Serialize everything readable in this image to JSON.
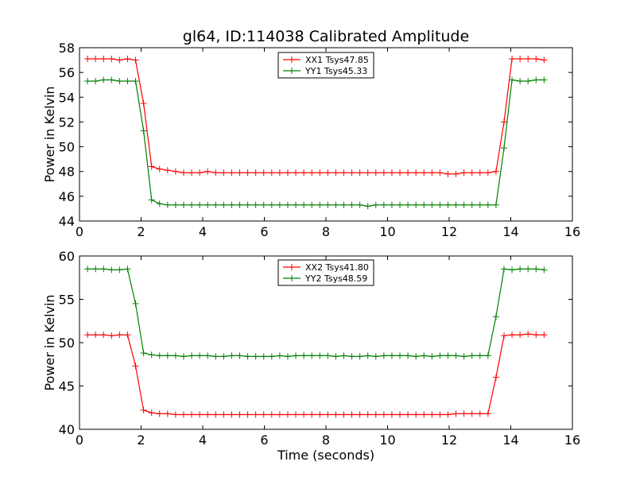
{
  "figure_title": "gl64, ID:114038 Calibrated Amplitude",
  "chart_data": [
    {
      "type": "line",
      "title": "gl64, ID:114038 Calibrated Amplitude",
      "xlabel": "",
      "ylabel": "Power in Kelvin",
      "xlim": [
        0,
        16
      ],
      "ylim": [
        44,
        58
      ],
      "xticks": [
        "0",
        "2",
        "4",
        "6",
        "8",
        "10",
        "12",
        "14",
        "16"
      ],
      "yticks": [
        "44",
        "46",
        "48",
        "50",
        "52",
        "54",
        "56",
        "58"
      ],
      "grid": false,
      "legend_position": "top-center",
      "x": [
        0.26,
        0.52,
        0.78,
        1.04,
        1.3,
        1.56,
        1.82,
        2.08,
        2.34,
        2.6,
        2.86,
        3.12,
        3.38,
        3.64,
        3.9,
        4.16,
        4.42,
        4.68,
        4.94,
        5.2,
        5.46,
        5.72,
        5.98,
        6.24,
        6.5,
        6.76,
        7.02,
        7.28,
        7.54,
        7.8,
        8.06,
        8.32,
        8.58,
        8.84,
        9.1,
        9.36,
        9.62,
        9.88,
        10.14,
        10.4,
        10.66,
        10.92,
        11.18,
        11.44,
        11.7,
        11.96,
        12.22,
        12.48,
        12.74,
        13.0,
        13.26,
        13.52,
        13.78,
        14.04,
        14.3,
        14.56,
        14.82,
        15.08
      ],
      "series": [
        {
          "name": "XX1 Tsys47.85",
          "color": "#ff0000",
          "values": [
            57.1,
            57.1,
            57.1,
            57.1,
            57.0,
            57.1,
            57.0,
            53.5,
            48.4,
            48.2,
            48.1,
            48.0,
            47.9,
            47.9,
            47.9,
            48.0,
            47.9,
            47.9,
            47.9,
            47.9,
            47.9,
            47.9,
            47.9,
            47.9,
            47.9,
            47.9,
            47.9,
            47.9,
            47.9,
            47.9,
            47.9,
            47.9,
            47.9,
            47.9,
            47.9,
            47.9,
            47.9,
            47.9,
            47.9,
            47.9,
            47.9,
            47.9,
            47.9,
            47.9,
            47.9,
            47.8,
            47.8,
            47.9,
            47.9,
            47.9,
            47.9,
            48.0,
            52.0,
            57.1,
            57.1,
            57.1,
            57.1,
            57.0
          ]
        },
        {
          "name": "YY1 Tsys45.33",
          "color": "#008000",
          "values": [
            55.3,
            55.3,
            55.4,
            55.4,
            55.3,
            55.3,
            55.3,
            51.3,
            45.7,
            45.4,
            45.3,
            45.3,
            45.3,
            45.3,
            45.3,
            45.3,
            45.3,
            45.3,
            45.3,
            45.3,
            45.3,
            45.3,
            45.3,
            45.3,
            45.3,
            45.3,
            45.3,
            45.3,
            45.3,
            45.3,
            45.3,
            45.3,
            45.3,
            45.3,
            45.3,
            45.2,
            45.3,
            45.3,
            45.3,
            45.3,
            45.3,
            45.3,
            45.3,
            45.3,
            45.3,
            45.3,
            45.3,
            45.3,
            45.3,
            45.3,
            45.3,
            45.3,
            49.9,
            55.4,
            55.3,
            55.3,
            55.4,
            55.4
          ]
        }
      ]
    },
    {
      "type": "line",
      "title": "",
      "xlabel": "Time (seconds)",
      "ylabel": "Power in Kelvin",
      "xlim": [
        0,
        16
      ],
      "ylim": [
        40,
        60
      ],
      "xticks": [
        "0",
        "2",
        "4",
        "6",
        "8",
        "10",
        "12",
        "14",
        "16"
      ],
      "yticks": [
        "40",
        "45",
        "50",
        "55",
        "60"
      ],
      "grid": false,
      "legend_position": "top-center",
      "x": [
        0.26,
        0.52,
        0.78,
        1.04,
        1.3,
        1.56,
        1.82,
        2.08,
        2.34,
        2.6,
        2.86,
        3.12,
        3.38,
        3.64,
        3.9,
        4.16,
        4.42,
        4.68,
        4.94,
        5.2,
        5.46,
        5.72,
        5.98,
        6.24,
        6.5,
        6.76,
        7.02,
        7.28,
        7.54,
        7.8,
        8.06,
        8.32,
        8.58,
        8.84,
        9.1,
        9.36,
        9.62,
        9.88,
        10.14,
        10.4,
        10.66,
        10.92,
        11.18,
        11.44,
        11.7,
        11.96,
        12.22,
        12.48,
        12.74,
        13.0,
        13.26,
        13.52,
        13.78,
        14.04,
        14.3,
        14.56,
        14.82,
        15.08
      ],
      "series": [
        {
          "name": "XX2 Tsys41.80",
          "color": "#ff0000",
          "values": [
            50.9,
            50.9,
            50.9,
            50.8,
            50.9,
            50.9,
            47.3,
            42.2,
            41.9,
            41.8,
            41.8,
            41.7,
            41.7,
            41.7,
            41.7,
            41.7,
            41.7,
            41.7,
            41.7,
            41.7,
            41.7,
            41.7,
            41.7,
            41.7,
            41.7,
            41.7,
            41.7,
            41.7,
            41.7,
            41.7,
            41.7,
            41.7,
            41.7,
            41.7,
            41.7,
            41.7,
            41.7,
            41.7,
            41.7,
            41.7,
            41.7,
            41.7,
            41.7,
            41.7,
            41.7,
            41.7,
            41.8,
            41.8,
            41.8,
            41.8,
            41.8,
            46.0,
            50.8,
            50.9,
            50.9,
            51.0,
            50.9,
            50.9
          ]
        },
        {
          "name": "YY2 Tsys48.59",
          "color": "#008000",
          "values": [
            58.5,
            58.5,
            58.5,
            58.4,
            58.4,
            58.5,
            54.5,
            48.8,
            48.6,
            48.5,
            48.5,
            48.5,
            48.4,
            48.5,
            48.5,
            48.5,
            48.4,
            48.4,
            48.5,
            48.5,
            48.4,
            48.4,
            48.4,
            48.4,
            48.5,
            48.4,
            48.5,
            48.5,
            48.5,
            48.5,
            48.5,
            48.4,
            48.5,
            48.4,
            48.4,
            48.5,
            48.4,
            48.5,
            48.5,
            48.5,
            48.5,
            48.4,
            48.5,
            48.4,
            48.5,
            48.5,
            48.5,
            48.4,
            48.5,
            48.5,
            48.5,
            53.0,
            58.5,
            58.4,
            58.5,
            58.5,
            58.5,
            58.4
          ]
        }
      ]
    }
  ]
}
